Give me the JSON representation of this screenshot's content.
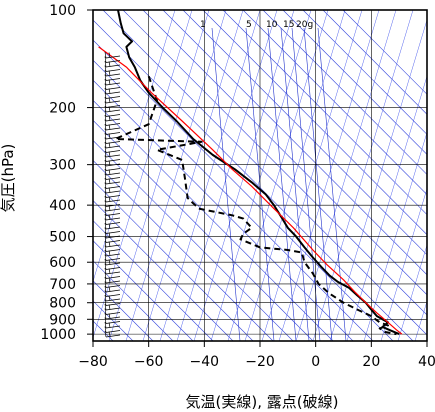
{
  "chart_data": {
    "type": "line",
    "title": "",
    "xlabel": "気温(実線), 露点(破線)",
    "ylabel": "気圧(hPa)",
    "xlim": [
      -80,
      40
    ],
    "ylim_pressure": [
      1050,
      100
    ],
    "y_scale": "log-pressure",
    "x_ticks": [
      "−80",
      "−60",
      "−40",
      "−20",
      "0",
      "20",
      "40"
    ],
    "x_tick_values": [
      -80,
      -60,
      -40,
      -20,
      0,
      20,
      40
    ],
    "y_ticks": [
      "100",
      "200",
      "300",
      "400",
      "500",
      "600",
      "700",
      "800",
      "900",
      "1000"
    ],
    "y_tick_values": [
      100,
      200,
      300,
      400,
      500,
      600,
      700,
      800,
      900,
      1000
    ],
    "mixing_ratio_labels": [
      "1",
      "5",
      "10",
      "15",
      "20g"
    ],
    "grid": true,
    "series": [
      {
        "style": "solid",
        "color": "#000000",
        "points": [
          [
            -71,
            100
          ],
          [
            -70,
            110
          ],
          [
            -69,
            118
          ],
          [
            -66,
            125
          ],
          [
            -68,
            130
          ],
          [
            -67,
            140
          ],
          [
            -65,
            150
          ],
          [
            -63,
            165
          ],
          [
            -60,
            180
          ],
          [
            -55,
            200
          ],
          [
            -50,
            220
          ],
          [
            -44,
            250
          ],
          [
            -37,
            280
          ],
          [
            -29,
            310
          ],
          [
            -23,
            340
          ],
          [
            -18,
            370
          ],
          [
            -15,
            400
          ],
          [
            -12,
            440
          ],
          [
            -10,
            470
          ],
          [
            -7,
            500
          ],
          [
            -4,
            540
          ],
          [
            -1,
            580
          ],
          [
            2,
            620
          ],
          [
            5,
            660
          ],
          [
            8,
            690
          ],
          [
            12,
            720
          ],
          [
            15,
            760
          ],
          [
            18,
            800
          ],
          [
            20,
            840
          ],
          [
            22,
            880
          ],
          [
            26,
            920
          ],
          [
            24,
            950
          ],
          [
            27,
            975
          ],
          [
            30,
            1000
          ]
        ]
      },
      {
        "style": "dashed",
        "color": "#000000",
        "points": [
          [
            -60,
            160
          ],
          [
            -57,
            190
          ],
          [
            -60,
            225
          ],
          [
            -72,
            250
          ],
          [
            -41,
            255
          ],
          [
            -57,
            270
          ],
          [
            -48,
            290
          ],
          [
            -47,
            330
          ],
          [
            -46,
            380
          ],
          [
            -42,
            410
          ],
          [
            -30,
            430
          ],
          [
            -26,
            440
          ],
          [
            -23,
            470
          ],
          [
            -26,
            490
          ],
          [
            -27,
            510
          ],
          [
            -20,
            540
          ],
          [
            -10,
            550
          ],
          [
            -5,
            560
          ],
          [
            -4,
            600
          ],
          [
            -1,
            650
          ],
          [
            1,
            700
          ],
          [
            5,
            750
          ],
          [
            10,
            800
          ],
          [
            15,
            840
          ],
          [
            20,
            880
          ],
          [
            23,
            920
          ],
          [
            26,
            940
          ],
          [
            23,
            960
          ],
          [
            25,
            985
          ],
          [
            29,
            1000
          ]
        ]
      },
      {
        "style": "solid",
        "color": "#ff0000",
        "points": [
          [
            -78,
            130
          ],
          [
            -68,
            150
          ],
          [
            -59,
            180
          ],
          [
            -48,
            220
          ],
          [
            -37,
            270
          ],
          [
            -30,
            310
          ],
          [
            -23,
            350
          ],
          [
            -15,
            410
          ],
          [
            -8,
            470
          ],
          [
            -1,
            550
          ],
          [
            4,
            610
          ],
          [
            10,
            680
          ],
          [
            14,
            740
          ],
          [
            18,
            800
          ],
          [
            22,
            860
          ],
          [
            26,
            920
          ],
          [
            29,
            970
          ],
          [
            31,
            1000
          ]
        ]
      }
    ]
  }
}
